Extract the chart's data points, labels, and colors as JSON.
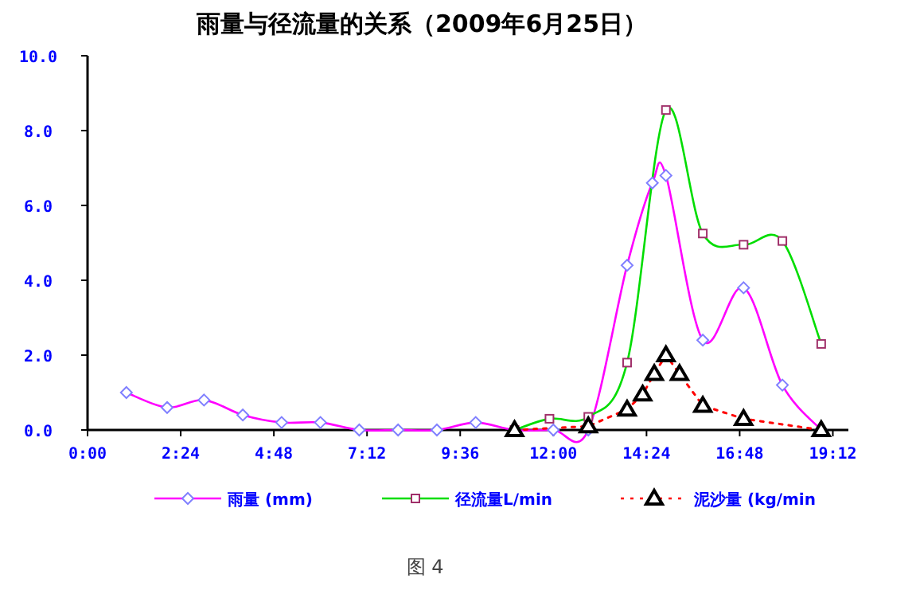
{
  "chart_data": {
    "type": "line",
    "title": "雨量与径流量的关系（2009年6月25日）",
    "xlim": [
      0,
      19.6
    ],
    "ylim": [
      0,
      10
    ],
    "xticks": [
      {
        "value": 0,
        "label": "0:00"
      },
      {
        "value": 2.4,
        "label": "2:24"
      },
      {
        "value": 4.8,
        "label": "4:48"
      },
      {
        "value": 7.2,
        "label": "7:12"
      },
      {
        "value": 9.6,
        "label": "9:36"
      },
      {
        "value": 12,
        "label": "12:00"
      },
      {
        "value": 14.4,
        "label": "14:24"
      },
      {
        "value": 16.8,
        "label": "16:48"
      },
      {
        "value": 19.2,
        "label": "19:12"
      }
    ],
    "yticks": [
      {
        "value": 0,
        "label": "0.0"
      },
      {
        "value": 2,
        "label": "2.0"
      },
      {
        "value": 4,
        "label": "4.0"
      },
      {
        "value": 6,
        "label": "6.0"
      },
      {
        "value": 8,
        "label": "8.0"
      },
      {
        "value": 10,
        "label": "10.0"
      }
    ],
    "series": [
      {
        "name": "雨量 (mm)",
        "color": "#ff00ff",
        "marker": "diamond",
        "line_style": "solid",
        "x": [
          1.0,
          2.05,
          3.0,
          4.0,
          5.0,
          6.0,
          7.0,
          8.0,
          9.0,
          10.0,
          11.0,
          12.0,
          12.9,
          13.9,
          14.55,
          14.9,
          15.85,
          16.9,
          17.9,
          18.9
        ],
        "values": [
          1.0,
          0.6,
          0.8,
          0.4,
          0.2,
          0.2,
          0,
          0,
          0,
          0.2,
          0,
          0,
          0,
          4.4,
          6.6,
          6.8,
          2.4,
          3.8,
          1.2,
          0
        ]
      },
      {
        "name": "径流量L/min",
        "color": "#00dd00",
        "marker": "square",
        "line_style": "solid",
        "x": [
          11.0,
          11.9,
          12.9,
          13.9,
          14.9,
          15.85,
          16.9,
          17.9,
          18.9
        ],
        "values": [
          0,
          0.3,
          0.35,
          1.8,
          8.55,
          5.25,
          4.95,
          5.05,
          2.3
        ]
      },
      {
        "name": "泥沙量 (kg/min",
        "color": "#ff0000",
        "marker": "triangle",
        "line_style": "dotted",
        "x": [
          11.0,
          12.9,
          13.9,
          14.3,
          14.6,
          14.9,
          15.25,
          15.85,
          16.9,
          18.9
        ],
        "values": [
          0,
          0.1,
          0.55,
          0.95,
          1.5,
          2.0,
          1.5,
          0.65,
          0.3,
          0
        ]
      }
    ],
    "legend": "bottom",
    "annotations": [
      "图 4"
    ]
  }
}
